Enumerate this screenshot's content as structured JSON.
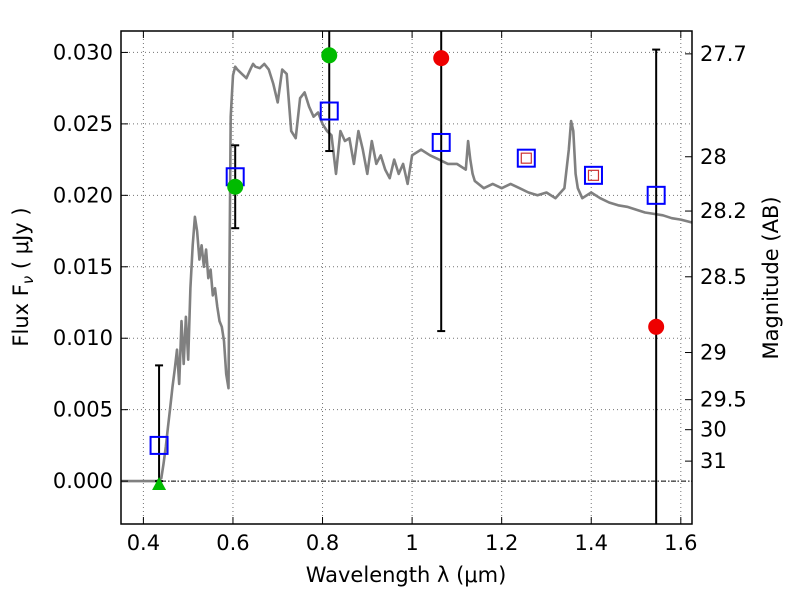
{
  "chart_data": {
    "type": "scatter",
    "xlabel": "Wavelength  λ (μm)",
    "ylabel": "Flux  F",
    "ylabel_subscript": "ν",
    "ylabel_unit": "  ( μJy )",
    "ylabel_right": "Magnitude (AB)",
    "xlim": [
      0.35,
      1.625
    ],
    "ylim": [
      -0.003,
      0.0315
    ],
    "x_ticks": [
      0.4,
      0.6,
      0.8,
      1.0,
      1.2,
      1.4,
      1.6
    ],
    "x_tick_labels": [
      "0.4",
      "0.6",
      "0.8",
      "1",
      "1.2",
      "1.4",
      "1.6"
    ],
    "y_ticks": [
      0.0,
      0.005,
      0.01,
      0.015,
      0.02,
      0.025,
      0.03
    ],
    "y_tick_labels": [
      "0.000",
      "0.005",
      "0.010",
      "0.015",
      "0.020",
      "0.025",
      "0.030"
    ],
    "right_ticks": [
      {
        "label": "27.7",
        "flux": 0.0299
      },
      {
        "label": "28",
        "flux": 0.0227
      },
      {
        "label": "28.2",
        "flux": 0.0189
      },
      {
        "label": "28.5",
        "flux": 0.0143
      },
      {
        "label": "29",
        "flux": 0.009
      },
      {
        "label": "29.5",
        "flux": 0.0057
      },
      {
        "label": "30",
        "flux": 0.0036
      },
      {
        "label": "31",
        "flux": 0.0014
      }
    ],
    "grid": true,
    "colors": {
      "model": "#808080",
      "observed_box": "#0000ff",
      "green": "#00bb00",
      "red": "#ee0000",
      "inner_box": "#cc3333",
      "errorbar": "#000000"
    },
    "model_spectrum": {
      "x": [
        0.35,
        0.43,
        0.44,
        0.445,
        0.45,
        0.455,
        0.46,
        0.465,
        0.47,
        0.475,
        0.48,
        0.485,
        0.49,
        0.495,
        0.5,
        0.505,
        0.51,
        0.515,
        0.52,
        0.525,
        0.53,
        0.535,
        0.54,
        0.545,
        0.55,
        0.555,
        0.56,
        0.565,
        0.57,
        0.575,
        0.58,
        0.585,
        0.59,
        0.595,
        0.6,
        0.605,
        0.61,
        0.62,
        0.63,
        0.64,
        0.645,
        0.65,
        0.66,
        0.67,
        0.68,
        0.69,
        0.7,
        0.71,
        0.72,
        0.73,
        0.74,
        0.75,
        0.76,
        0.77,
        0.78,
        0.79,
        0.8,
        0.81,
        0.82,
        0.83,
        0.84,
        0.85,
        0.86,
        0.87,
        0.88,
        0.89,
        0.9,
        0.91,
        0.92,
        0.93,
        0.94,
        0.95,
        0.96,
        0.97,
        0.98,
        0.99,
        1.0,
        1.02,
        1.04,
        1.06,
        1.08,
        1.1,
        1.12,
        1.125,
        1.13,
        1.135,
        1.14,
        1.16,
        1.18,
        1.2,
        1.22,
        1.24,
        1.26,
        1.28,
        1.3,
        1.32,
        1.34,
        1.35,
        1.355,
        1.36,
        1.365,
        1.37,
        1.38,
        1.4,
        1.42,
        1.44,
        1.46,
        1.48,
        1.5,
        1.52,
        1.54,
        1.56,
        1.58,
        1.6,
        1.625
      ],
      "y": [
        0.0,
        0.0,
        0.0002,
        0.0012,
        0.0024,
        0.0038,
        0.0052,
        0.0066,
        0.0078,
        0.0092,
        0.0068,
        0.0112,
        0.0082,
        0.0115,
        0.0085,
        0.0135,
        0.0165,
        0.0185,
        0.0175,
        0.0155,
        0.0165,
        0.015,
        0.0162,
        0.0142,
        0.0148,
        0.013,
        0.0135,
        0.0122,
        0.0112,
        0.0108,
        0.0098,
        0.0075,
        0.0065,
        0.0255,
        0.0284,
        0.029,
        0.0288,
        0.0285,
        0.0282,
        0.0289,
        0.0292,
        0.029,
        0.0289,
        0.0292,
        0.0288,
        0.0278,
        0.0265,
        0.0288,
        0.0285,
        0.0245,
        0.024,
        0.0268,
        0.0272,
        0.0262,
        0.0255,
        0.0258,
        0.025,
        0.0245,
        0.0242,
        0.0215,
        0.0245,
        0.0238,
        0.024,
        0.0222,
        0.0245,
        0.0232,
        0.0215,
        0.0238,
        0.0222,
        0.0228,
        0.0218,
        0.0212,
        0.0225,
        0.0215,
        0.0222,
        0.0208,
        0.0228,
        0.0232,
        0.0228,
        0.0225,
        0.0222,
        0.0222,
        0.0218,
        0.0238,
        0.0225,
        0.0215,
        0.021,
        0.0205,
        0.0208,
        0.0205,
        0.0208,
        0.0205,
        0.0202,
        0.02,
        0.0202,
        0.0198,
        0.0205,
        0.0232,
        0.0252,
        0.0245,
        0.0215,
        0.0205,
        0.0198,
        0.0202,
        0.0198,
        0.0195,
        0.0193,
        0.0192,
        0.019,
        0.0188,
        0.0187,
        0.0186,
        0.0184,
        0.0183,
        0.0181
      ]
    },
    "series": [
      {
        "marker": "open-square",
        "color": "#0000ff",
        "points": [
          {
            "x": 0.435,
            "y": 0.0025,
            "err_lo": 0.0,
            "err_hi": 0.0081
          },
          {
            "x": 0.605,
            "y": 0.0213,
            "err_lo": 0.0177,
            "err_hi": 0.0235
          },
          {
            "x": 0.815,
            "y": 0.0259,
            "err_lo": 0.0231,
            "err_hi": 0.0315
          },
          {
            "x": 1.065,
            "y": 0.0237,
            "err_lo": 0.0105,
            "err_hi": 0.0315
          },
          {
            "x": 1.255,
            "y": 0.0226
          },
          {
            "x": 1.405,
            "y": 0.0214
          },
          {
            "x": 1.545,
            "y": 0.02,
            "err_lo": -0.003,
            "err_hi": 0.0302
          }
        ]
      },
      {
        "marker": "inner-square",
        "color": "#cc3333",
        "points": [
          {
            "x": 1.255,
            "y": 0.0226
          },
          {
            "x": 1.405,
            "y": 0.0214
          }
        ]
      },
      {
        "marker": "circle",
        "color": "#00bb00",
        "points": [
          {
            "x": 0.605,
            "y": 0.0206
          },
          {
            "x": 0.815,
            "y": 0.0298
          }
        ]
      },
      {
        "marker": "triangle",
        "color": "#00bb00",
        "points": [
          {
            "x": 0.435,
            "y": -0.0002
          }
        ]
      },
      {
        "marker": "circle",
        "color": "#ee0000",
        "points": [
          {
            "x": 1.065,
            "y": 0.0296
          },
          {
            "x": 1.545,
            "y": 0.0108
          }
        ]
      }
    ]
  }
}
